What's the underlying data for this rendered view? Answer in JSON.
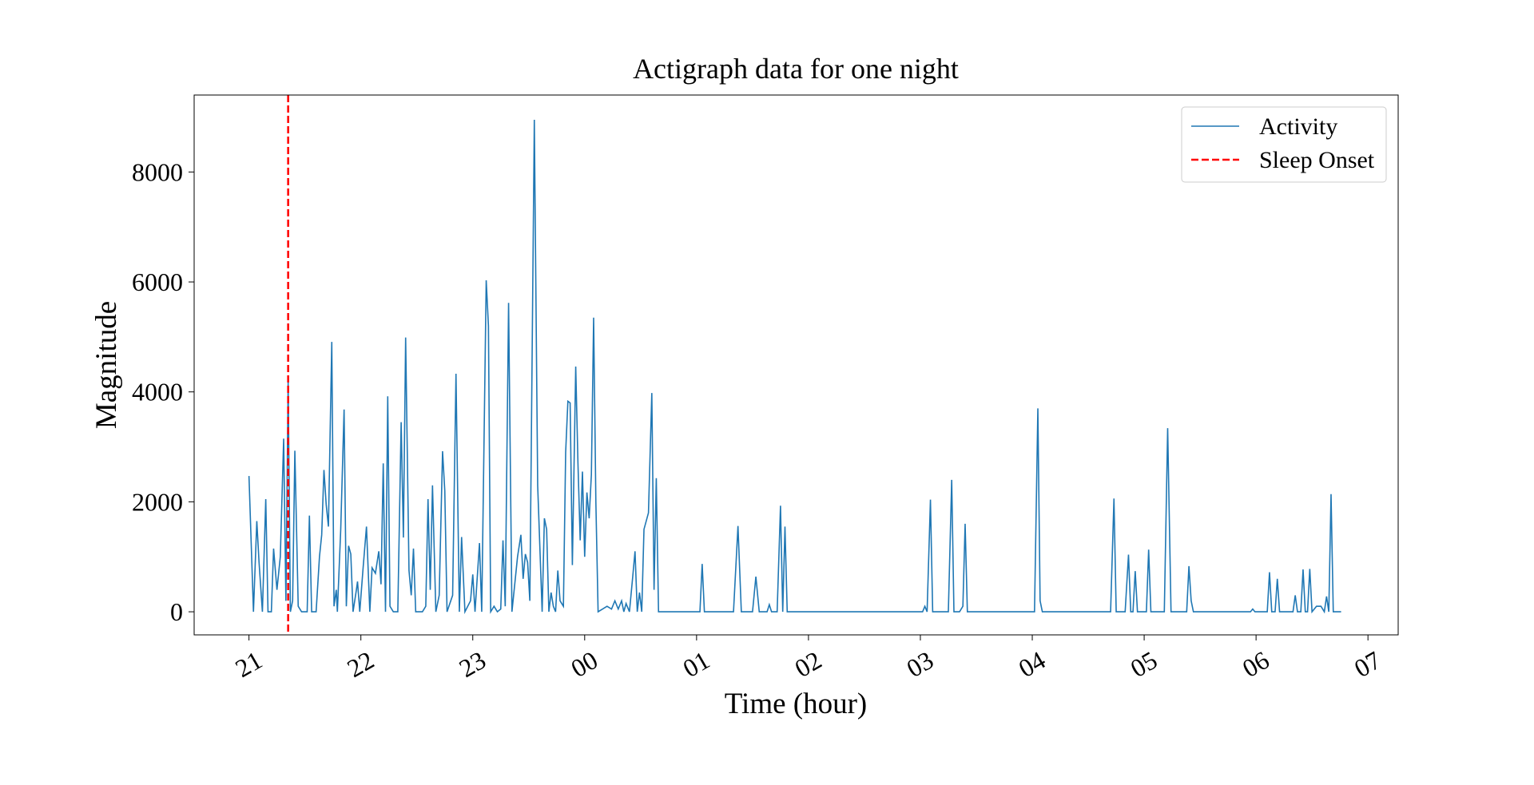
{
  "chart_data": {
    "type": "line",
    "title": "Actigraph data for one night",
    "xlabel": "Time (hour)",
    "ylabel": "Magnitude",
    "x": [
      21.0,
      21.04,
      21.07,
      21.09,
      21.12,
      21.15,
      21.17,
      21.2,
      21.22,
      21.25,
      21.28,
      21.31,
      21.33,
      21.35,
      21.37,
      21.39,
      21.41,
      21.44,
      21.47,
      21.52,
      21.54,
      21.56,
      21.6,
      21.63,
      21.65,
      21.67,
      21.69,
      21.71,
      21.74,
      21.76,
      21.78,
      21.79,
      21.82,
      21.85,
      21.87,
      21.89,
      21.91,
      21.93,
      21.96,
      21.97,
      21.99,
      22.02,
      22.05,
      22.08,
      22.1,
      22.13,
      22.16,
      22.18,
      22.2,
      22.22,
      22.24,
      22.26,
      22.29,
      22.33,
      22.36,
      22.38,
      22.4,
      22.43,
      22.45,
      22.47,
      22.49,
      22.55,
      22.58,
      22.6,
      22.62,
      22.64,
      22.67,
      22.7,
      22.73,
      22.75,
      22.77,
      22.82,
      22.85,
      22.88,
      22.9,
      22.93,
      22.98,
      23.0,
      23.02,
      23.06,
      23.08,
      23.12,
      23.14,
      23.16,
      23.19,
      23.22,
      23.25,
      23.27,
      23.29,
      23.32,
      23.35,
      23.4,
      23.43,
      23.45,
      23.47,
      23.49,
      23.51,
      23.55,
      23.58,
      23.62,
      23.64,
      23.66,
      23.68,
      23.7,
      23.72,
      23.74,
      23.76,
      23.78,
      23.81,
      23.83,
      23.85,
      23.87,
      23.89,
      23.92,
      23.94,
      23.96,
      23.98,
      24.0,
      24.02,
      24.04,
      24.06,
      24.08,
      24.1,
      24.12,
      24.2,
      24.24,
      24.27,
      24.3,
      24.33,
      24.35,
      24.37,
      24.4,
      24.43,
      24.45,
      24.47,
      24.49,
      24.51,
      24.53,
      24.57,
      24.6,
      24.62,
      24.64,
      24.66,
      25.03,
      25.05,
      25.07,
      25.33,
      25.37,
      25.4,
      25.5,
      25.53,
      25.56,
      25.63,
      25.65,
      25.67,
      25.72,
      25.75,
      25.77,
      25.79,
      25.81,
      27.02,
      27.04,
      27.06,
      27.09,
      27.11,
      27.25,
      27.28,
      27.3,
      27.35,
      27.38,
      27.4,
      27.42,
      28.02,
      28.05,
      28.07,
      28.09,
      28.7,
      28.73,
      28.75,
      28.83,
      28.86,
      28.88,
      28.9,
      28.92,
      28.94,
      29.02,
      29.04,
      29.06,
      29.18,
      29.21,
      29.24,
      29.38,
      29.4,
      29.42,
      29.44,
      29.95,
      29.97,
      29.99,
      30.1,
      30.12,
      30.14,
      30.17,
      30.19,
      30.21,
      30.33,
      30.35,
      30.37,
      30.4,
      30.42,
      30.44,
      30.46,
      30.48,
      30.5,
      30.54,
      30.58,
      30.61,
      30.63,
      30.65,
      30.67,
      30.69,
      30.76
    ],
    "series": [
      {
        "name": "Activity",
        "color": "#1f77b4",
        "values": [
          2470,
          0,
          1650,
          900,
          0,
          2050,
          0,
          0,
          1150,
          400,
          1000,
          3150,
          200,
          4200,
          0,
          200,
          2930,
          100,
          0,
          0,
          1750,
          0,
          0,
          1000,
          1400,
          2580,
          1950,
          1550,
          4910,
          100,
          400,
          0,
          1500,
          3680,
          100,
          1200,
          1050,
          0,
          400,
          550,
          0,
          800,
          1550,
          0,
          800,
          700,
          1100,
          500,
          2700,
          0,
          3920,
          100,
          0,
          0,
          3450,
          1350,
          4990,
          750,
          300,
          1150,
          0,
          0,
          100,
          2050,
          400,
          2300,
          0,
          300,
          2920,
          2200,
          0,
          300,
          4330,
          0,
          1360,
          0,
          200,
          680,
          0,
          1250,
          0,
          6030,
          5200,
          0,
          100,
          0,
          50,
          1300,
          100,
          5620,
          0,
          1000,
          1400,
          600,
          1050,
          900,
          200,
          8950,
          2300,
          0,
          1700,
          1500,
          0,
          350,
          100,
          0,
          750,
          200,
          100,
          2900,
          3830,
          3800,
          850,
          4460,
          2700,
          1300,
          2550,
          1000,
          2170,
          1700,
          2500,
          5350,
          2000,
          0,
          100,
          50,
          200,
          50,
          200,
          0,
          150,
          0,
          650,
          1100,
          0,
          350,
          0,
          1500,
          1800,
          3980,
          400,
          2430,
          0,
          0,
          870,
          0,
          0,
          1560,
          0,
          0,
          640,
          0,
          0,
          130,
          0,
          0,
          1930,
          0,
          1550,
          0,
          0,
          100,
          0,
          2040,
          0,
          0,
          2400,
          0,
          0,
          100,
          1600,
          0,
          0,
          3700,
          200,
          0,
          0,
          2060,
          0,
          0,
          1040,
          0,
          0,
          740,
          0,
          0,
          1130,
          0,
          0,
          3340,
          0,
          0,
          830,
          200,
          0,
          0,
          50,
          0,
          0,
          720,
          0,
          0,
          600,
          0,
          0,
          300,
          0,
          0,
          770,
          0,
          0,
          780,
          0,
          100,
          100,
          0,
          280,
          0,
          2140,
          0,
          0
        ]
      }
    ],
    "vline": {
      "name": "Sleep Onset",
      "x": 21.35,
      "color": "#ff0000",
      "style": "dashed"
    },
    "xlim": [
      20.51,
      31.27
    ],
    "ylim": [
      -420,
      9400
    ],
    "xticks": [
      {
        "value": 21,
        "label": "21"
      },
      {
        "value": 22,
        "label": "22"
      },
      {
        "value": 23,
        "label": "23"
      },
      {
        "value": 24,
        "label": "00"
      },
      {
        "value": 25,
        "label": "01"
      },
      {
        "value": 26,
        "label": "02"
      },
      {
        "value": 27,
        "label": "03"
      },
      {
        "value": 28,
        "label": "04"
      },
      {
        "value": 29,
        "label": "05"
      },
      {
        "value": 30,
        "label": "06"
      },
      {
        "value": 31,
        "label": "07"
      }
    ],
    "yticks": [
      0,
      2000,
      4000,
      6000,
      8000
    ],
    "grid": false,
    "legend": "upper right"
  }
}
